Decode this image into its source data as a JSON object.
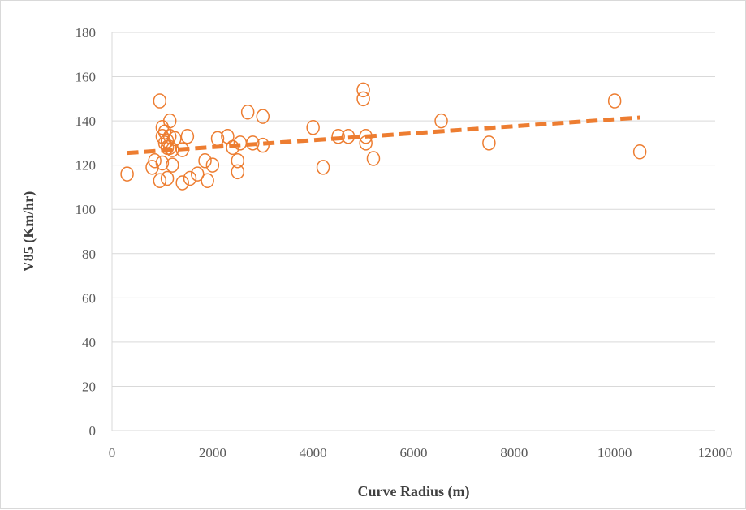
{
  "chart_data": {
    "type": "scatter",
    "title": "",
    "xlabel": "Curve Radius (m)",
    "ylabel": "V85 (Km/hr)",
    "xlim": [
      0,
      12000
    ],
    "ylim": [
      0,
      180
    ],
    "xticks": [
      0,
      2000,
      4000,
      6000,
      8000,
      10000,
      12000
    ],
    "yticks": [
      0,
      20,
      40,
      60,
      80,
      100,
      120,
      140,
      160,
      180
    ],
    "grid": "horizontal",
    "legend": "none",
    "marker": "open-circle",
    "color": "#ED7D31",
    "series": [
      {
        "points": [
          [
            300,
            116
          ],
          [
            800,
            119
          ],
          [
            850,
            122
          ],
          [
            950,
            113
          ],
          [
            950,
            149
          ],
          [
            1000,
            137
          ],
          [
            1000,
            133
          ],
          [
            1000,
            121
          ],
          [
            1050,
            135
          ],
          [
            1050,
            130
          ],
          [
            1100,
            131
          ],
          [
            1100,
            128
          ],
          [
            1100,
            114
          ],
          [
            1150,
            140
          ],
          [
            1150,
            133
          ],
          [
            1150,
            128
          ],
          [
            1200,
            120
          ],
          [
            1200,
            127
          ],
          [
            1250,
            132
          ],
          [
            1400,
            112
          ],
          [
            1400,
            127
          ],
          [
            1500,
            133
          ],
          [
            1550,
            114
          ],
          [
            1700,
            116
          ],
          [
            1850,
            122
          ],
          [
            1900,
            113
          ],
          [
            2000,
            120
          ],
          [
            2100,
            132
          ],
          [
            2300,
            133
          ],
          [
            2400,
            128
          ],
          [
            2500,
            117
          ],
          [
            2500,
            122
          ],
          [
            2550,
            130
          ],
          [
            2700,
            144
          ],
          [
            2800,
            130
          ],
          [
            3000,
            142
          ],
          [
            3000,
            129
          ],
          [
            4000,
            137
          ],
          [
            4200,
            119
          ],
          [
            4500,
            133
          ],
          [
            4700,
            133
          ],
          [
            5000,
            154
          ],
          [
            5000,
            150
          ],
          [
            5050,
            130
          ],
          [
            5050,
            133
          ],
          [
            5200,
            123
          ],
          [
            6550,
            140
          ],
          [
            7500,
            130
          ],
          [
            10000,
            149
          ],
          [
            10500,
            126
          ]
        ]
      }
    ],
    "trendline": {
      "type": "linear",
      "style": "dashed",
      "start": [
        300,
        125.5
      ],
      "end": [
        10500,
        141.5
      ]
    }
  }
}
